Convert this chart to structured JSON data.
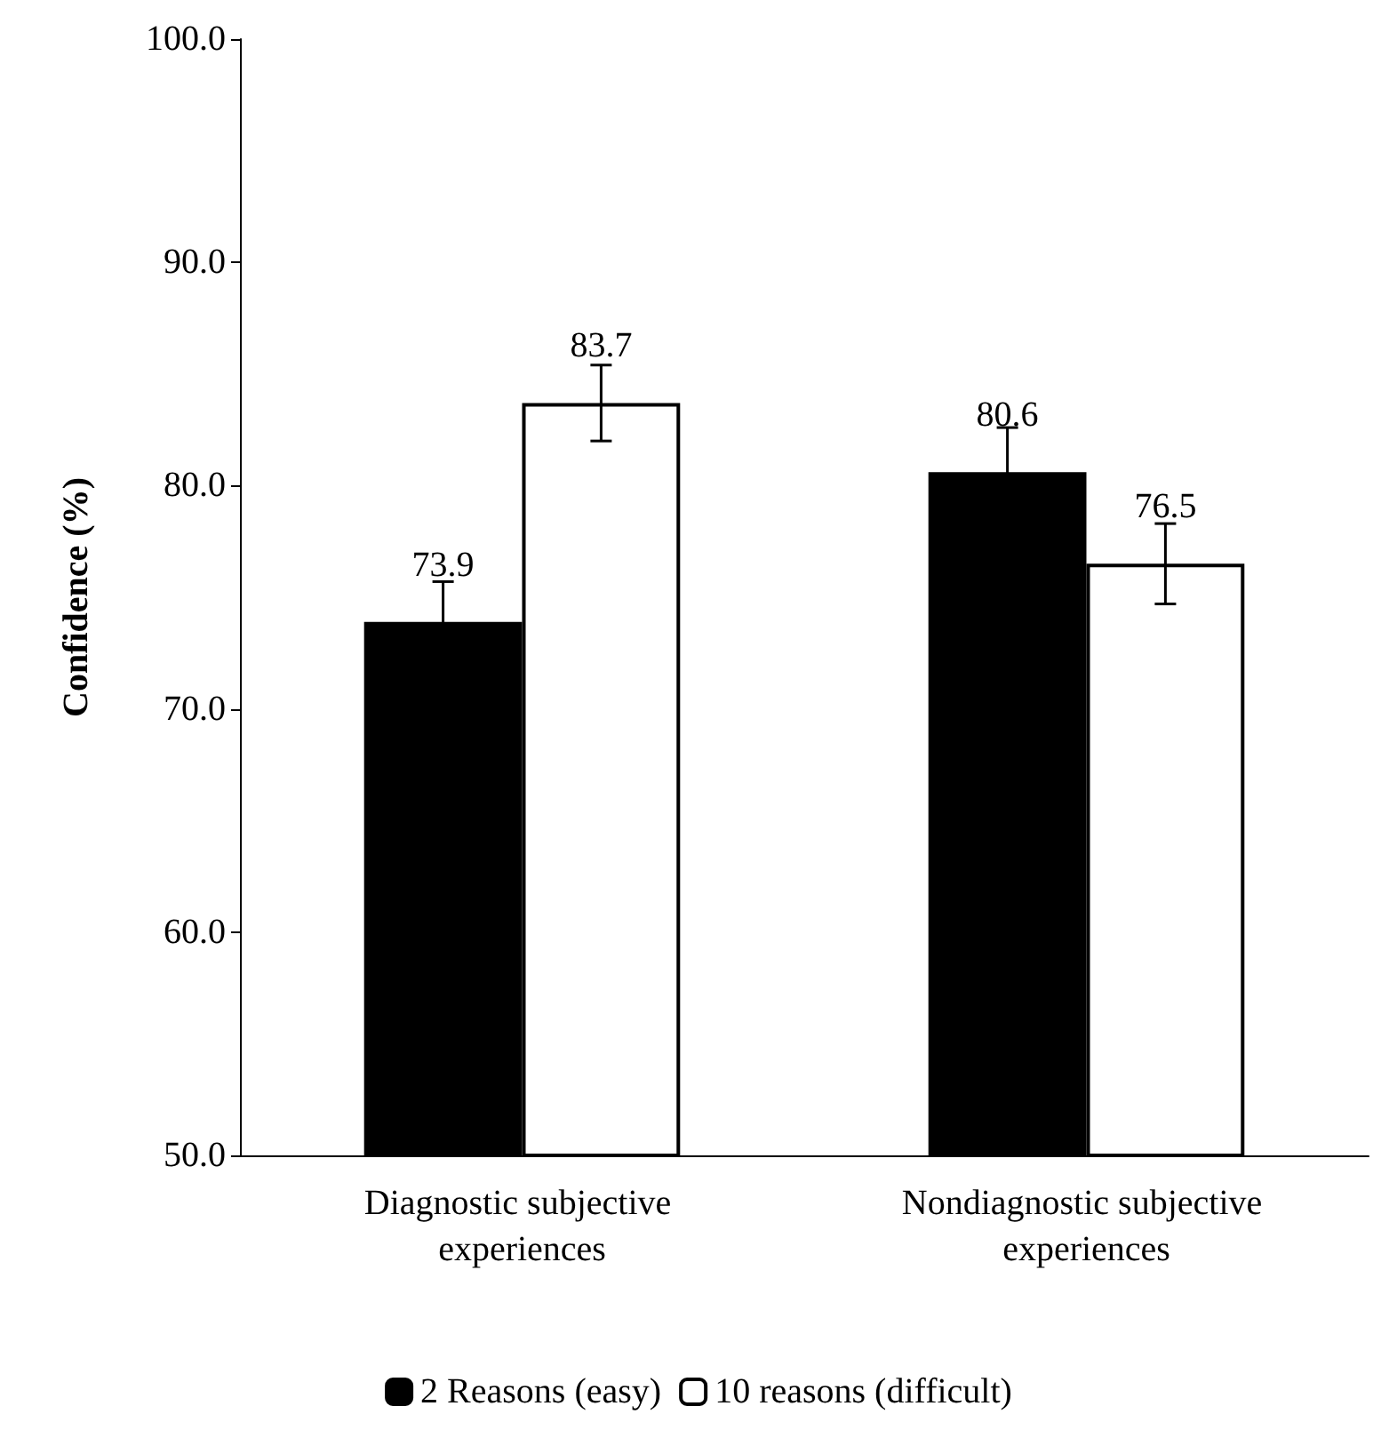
{
  "chart_data": {
    "type": "bar",
    "ylabel": "Confidence (%)",
    "categories": [
      "Diagnostic subjective experiences",
      "Nondiagnostic subjective experiences"
    ],
    "series": [
      {
        "name": "2 Reasons (easy)",
        "color": "#000000",
        "values": [
          73.9,
          80.6
        ],
        "errors": [
          1.8,
          2.0
        ]
      },
      {
        "name": "10 reasons (difficult)",
        "color": "#ffffff",
        "values": [
          83.7,
          76.5
        ],
        "errors": [
          1.7,
          1.8
        ]
      }
    ],
    "ylim": [
      50,
      100
    ],
    "yticks": [
      {
        "value": 50,
        "label": "50.0"
      },
      {
        "value": 60,
        "label": "60.0"
      },
      {
        "value": 70,
        "label": "70.0"
      },
      {
        "value": 80,
        "label": "80.0"
      },
      {
        "value": 90,
        "label": "90.0"
      },
      {
        "value": 100,
        "label": "100.0"
      }
    ],
    "data_labels": true,
    "grid": false,
    "legend": "bottom"
  }
}
